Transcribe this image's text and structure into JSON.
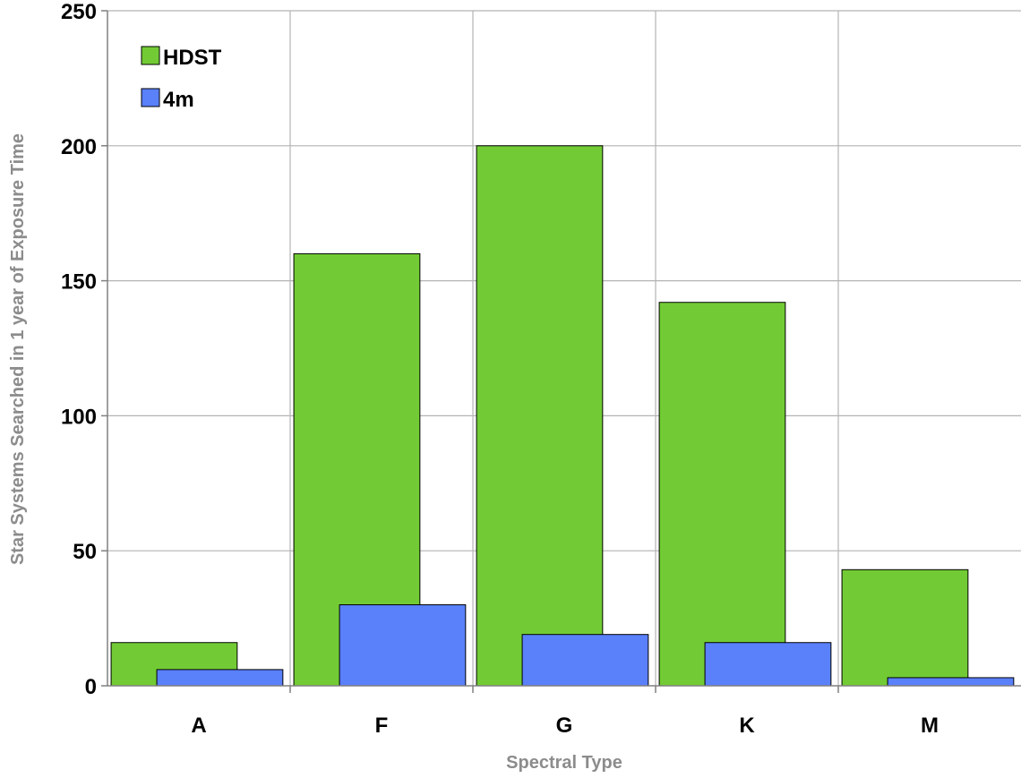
{
  "chart_data": {
    "type": "bar",
    "categories": [
      "A",
      "F",
      "G",
      "K",
      "M"
    ],
    "series": [
      {
        "name": "HDST",
        "color": "#72cb34",
        "values": [
          16,
          160,
          200,
          142,
          43
        ]
      },
      {
        "name": "4m",
        "color": "#5a80fa",
        "values": [
          6,
          30,
          19,
          16,
          3
        ]
      }
    ],
    "title": "",
    "xlabel": "Spectral Type",
    "ylabel": "Star Systems Searched in 1 year of Exposure Time",
    "ylim": [
      0,
      250
    ],
    "yticks": [
      0,
      50,
      100,
      150,
      200,
      250
    ],
    "grid": true,
    "legend_position": "top-left"
  }
}
